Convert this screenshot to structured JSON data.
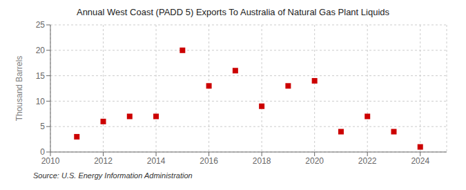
{
  "chart_data": {
    "type": "scatter",
    "title": "Annual West Coast (PADD 5) Exports To Australia of Natural Gas Plant Liquids",
    "y_label": "Thousand Barrels",
    "annotations": [
      "Source: U.S. Energy Information Administration"
    ],
    "x": [
      2011,
      2012,
      2013,
      2014,
      2015,
      2016,
      2017,
      2018,
      2019,
      2020,
      2021,
      2022,
      2023,
      2024
    ],
    "values": [
      3,
      6,
      7,
      7,
      20,
      13,
      16,
      9,
      13,
      14,
      4,
      7,
      4,
      1
    ],
    "color": "#cc0000",
    "marker": "square",
    "xlim": [
      2010,
      2025
    ],
    "ylim": [
      0,
      25
    ],
    "xticks": [
      2010,
      2012,
      2014,
      2016,
      2018,
      2020,
      2022,
      2024
    ],
    "yticks": [
      0,
      5,
      10,
      15,
      20,
      25
    ],
    "grid": true
  }
}
